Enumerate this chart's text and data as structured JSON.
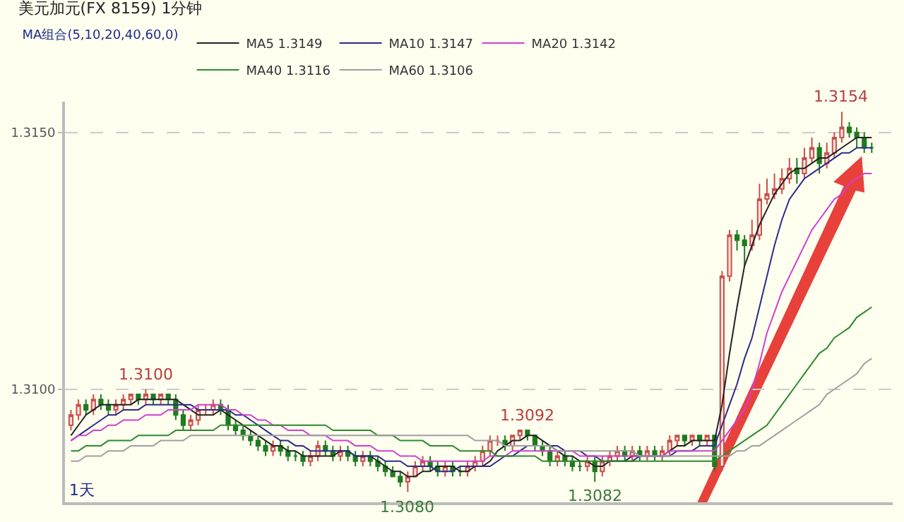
{
  "chart_data": {
    "type": "candlestick",
    "title": "美元加元(FX 8159) 1分钟",
    "legend_title": "MA组合(5,10,20,40,60,0)",
    "categories": [
      null,
      null,
      null,
      null,
      null,
      null,
      null,
      null,
      null,
      null,
      null,
      null,
      null,
      null,
      null,
      null,
      null,
      null,
      null,
      null,
      null,
      null,
      null,
      null,
      null,
      null,
      null,
      null,
      null,
      null,
      null,
      null,
      null,
      null,
      null,
      null,
      null,
      null,
      null,
      null,
      null,
      null,
      null,
      null,
      null,
      null,
      null,
      null,
      null,
      null,
      null,
      null,
      null,
      null,
      null,
      null,
      null,
      null,
      null,
      null,
      null,
      null,
      null,
      null,
      null,
      null,
      null,
      null,
      null,
      null,
      null,
      null,
      null,
      null,
      null,
      null,
      null,
      null,
      null,
      null,
      null,
      null,
      null,
      null,
      null,
      null,
      null,
      null,
      null,
      null,
      null,
      null,
      null,
      null,
      null,
      null,
      null,
      null,
      null,
      null,
      null,
      null,
      null,
      null,
      null,
      null,
      null,
      null
    ],
    "ohlc": [
      [
        1.3093,
        1.3096,
        1.3092,
        1.3095
      ],
      [
        1.3095,
        1.3098,
        1.3094,
        1.3097
      ],
      [
        1.3097,
        1.3098,
        1.3095,
        1.3096
      ],
      [
        1.3096,
        1.3099,
        1.3095,
        1.3098
      ],
      [
        1.3098,
        1.3099,
        1.3096,
        1.3097
      ],
      [
        1.3097,
        1.3098,
        1.3095,
        1.3096
      ],
      [
        1.3096,
        1.3098,
        1.3095,
        1.3097
      ],
      [
        1.3097,
        1.3099,
        1.3096,
        1.3098
      ],
      [
        1.3098,
        1.3099,
        1.3097,
        1.3099
      ],
      [
        1.3099,
        1.3099,
        1.3097,
        1.3098
      ],
      [
        1.3098,
        1.31,
        1.3097,
        1.3099
      ],
      [
        1.3099,
        1.3099,
        1.3097,
        1.3098
      ],
      [
        1.3098,
        1.3099,
        1.3097,
        1.3099
      ],
      [
        1.3099,
        1.3099,
        1.3097,
        1.3098
      ],
      [
        1.3098,
        1.3099,
        1.3094,
        1.3095
      ],
      [
        1.3095,
        1.3096,
        1.3092,
        1.3093
      ],
      [
        1.3093,
        1.3095,
        1.3092,
        1.3094
      ],
      [
        1.3094,
        1.3097,
        1.3093,
        1.3096
      ],
      [
        1.3096,
        1.3097,
        1.3095,
        1.3096
      ],
      [
        1.3096,
        1.3098,
        1.3095,
        1.3097
      ],
      [
        1.3097,
        1.3098,
        1.3095,
        1.3096
      ],
      [
        1.3096,
        1.3097,
        1.3092,
        1.3093
      ],
      [
        1.3093,
        1.3094,
        1.3091,
        1.3092
      ],
      [
        1.3092,
        1.3093,
        1.309,
        1.3091
      ],
      [
        1.3091,
        1.3092,
        1.3089,
        1.309
      ],
      [
        1.309,
        1.3091,
        1.3088,
        1.3089
      ],
      [
        1.3089,
        1.309,
        1.3087,
        1.3088
      ],
      [
        1.3088,
        1.309,
        1.3087,
        1.3089
      ],
      [
        1.3089,
        1.309,
        1.3087,
        1.3088
      ],
      [
        1.3088,
        1.3089,
        1.3086,
        1.3087
      ],
      [
        1.3087,
        1.3088,
        1.3086,
        1.3087
      ],
      [
        1.3087,
        1.3088,
        1.3085,
        1.3086
      ],
      [
        1.3086,
        1.3088,
        1.3085,
        1.3087
      ],
      [
        1.3087,
        1.309,
        1.3086,
        1.3089
      ],
      [
        1.3089,
        1.309,
        1.3087,
        1.3088
      ],
      [
        1.3088,
        1.3089,
        1.3086,
        1.3087
      ],
      [
        1.3087,
        1.3089,
        1.3086,
        1.3088
      ],
      [
        1.3088,
        1.3089,
        1.3086,
        1.3087
      ],
      [
        1.3087,
        1.3088,
        1.3085,
        1.3086
      ],
      [
        1.3086,
        1.3088,
        1.3085,
        1.3087
      ],
      [
        1.3087,
        1.3088,
        1.3085,
        1.3086
      ],
      [
        1.3086,
        1.3087,
        1.3084,
        1.3085
      ],
      [
        1.3085,
        1.3086,
        1.3083,
        1.3084
      ],
      [
        1.3084,
        1.3085,
        1.3083,
        1.3083
      ],
      [
        1.3083,
        1.3084,
        1.3081,
        1.3082
      ],
      [
        1.3082,
        1.3084,
        1.308,
        1.3083
      ],
      [
        1.3083,
        1.3086,
        1.3083,
        1.3085
      ],
      [
        1.3085,
        1.3087,
        1.3084,
        1.3086
      ],
      [
        1.3086,
        1.3087,
        1.3084,
        1.3085
      ],
      [
        1.3085,
        1.3086,
        1.3083,
        1.3084
      ],
      [
        1.3084,
        1.3086,
        1.3083,
        1.3085
      ],
      [
        1.3085,
        1.3086,
        1.3083,
        1.3084
      ],
      [
        1.3084,
        1.3085,
        1.3083,
        1.3084
      ],
      [
        1.3084,
        1.3086,
        1.3083,
        1.3085
      ],
      [
        1.3085,
        1.3087,
        1.3084,
        1.3086
      ],
      [
        1.3086,
        1.3089,
        1.3085,
        1.3088
      ],
      [
        1.3088,
        1.3091,
        1.3087,
        1.309
      ],
      [
        1.309,
        1.3091,
        1.3089,
        1.309
      ],
      [
        1.309,
        1.3091,
        1.3088,
        1.3089
      ],
      [
        1.3089,
        1.3091,
        1.3088,
        1.3091
      ],
      [
        1.3091,
        1.3092,
        1.309,
        1.3092
      ],
      [
        1.3092,
        1.3092,
        1.309,
        1.3091
      ],
      [
        1.3091,
        1.3091,
        1.3088,
        1.3089
      ],
      [
        1.3089,
        1.309,
        1.3087,
        1.3088
      ],
      [
        1.3088,
        1.3089,
        1.3085,
        1.3086
      ],
      [
        1.3086,
        1.3088,
        1.3085,
        1.3087
      ],
      [
        1.3087,
        1.3088,
        1.3085,
        1.3086
      ],
      [
        1.3086,
        1.3087,
        1.3084,
        1.3085
      ],
      [
        1.3085,
        1.3086,
        1.3084,
        1.3085
      ],
      [
        1.3085,
        1.3087,
        1.3084,
        1.3086
      ],
      [
        1.3086,
        1.3087,
        1.3082,
        1.3084
      ],
      [
        1.3084,
        1.3087,
        1.3083,
        1.3086
      ],
      [
        1.3086,
        1.3088,
        1.3085,
        1.3087
      ],
      [
        1.3087,
        1.3089,
        1.3086,
        1.3088
      ],
      [
        1.3088,
        1.3089,
        1.3086,
        1.3087
      ],
      [
        1.3087,
        1.3089,
        1.3086,
        1.3088
      ],
      [
        1.3088,
        1.3089,
        1.3086,
        1.3087
      ],
      [
        1.3087,
        1.3089,
        1.3086,
        1.3088
      ],
      [
        1.3088,
        1.3089,
        1.3086,
        1.3087
      ],
      [
        1.3087,
        1.3089,
        1.3086,
        1.3088
      ],
      [
        1.3088,
        1.3091,
        1.3087,
        1.309
      ],
      [
        1.309,
        1.3091,
        1.3089,
        1.3091
      ],
      [
        1.3091,
        1.3091,
        1.3089,
        1.309
      ],
      [
        1.309,
        1.3091,
        1.3089,
        1.3091
      ],
      [
        1.3091,
        1.3091,
        1.3089,
        1.309
      ],
      [
        1.309,
        1.3091,
        1.3089,
        1.3091
      ],
      [
        1.3091,
        1.3091,
        1.3084,
        1.3085
      ],
      [
        1.3085,
        1.3123,
        1.3084,
        1.3122
      ],
      [
        1.3122,
        1.3131,
        1.3121,
        1.313
      ],
      [
        1.313,
        1.3131,
        1.3127,
        1.3129
      ],
      [
        1.3129,
        1.313,
        1.3124,
        1.3128
      ],
      [
        1.3128,
        1.3133,
        1.3127,
        1.313
      ],
      [
        1.313,
        1.314,
        1.3129,
        1.3137
      ],
      [
        1.3137,
        1.3141,
        1.3136,
        1.3138
      ],
      [
        1.3138,
        1.3142,
        1.3137,
        1.3139
      ],
      [
        1.3139,
        1.3143,
        1.3138,
        1.3141
      ],
      [
        1.3141,
        1.3145,
        1.314,
        1.3143
      ],
      [
        1.3143,
        1.3145,
        1.314,
        1.3142
      ],
      [
        1.3142,
        1.3147,
        1.3141,
        1.3145
      ],
      [
        1.3145,
        1.3149,
        1.3144,
        1.3147
      ],
      [
        1.3147,
        1.3148,
        1.3142,
        1.3144
      ],
      [
        1.3144,
        1.3148,
        1.3143,
        1.3146
      ],
      [
        1.3146,
        1.315,
        1.3145,
        1.3149
      ],
      [
        1.3149,
        1.3154,
        1.3148,
        1.3151
      ],
      [
        1.3151,
        1.3152,
        1.3149,
        1.315
      ],
      [
        1.315,
        1.3151,
        1.3147,
        1.3149
      ],
      [
        1.3149,
        1.315,
        1.3146,
        1.3147
      ],
      [
        1.3147,
        1.3148,
        1.3146,
        1.3147
      ]
    ],
    "series": [
      {
        "type": "line",
        "name": "MA5 1.3149",
        "color": "#222222",
        "values": [
          1.3091,
          1.3093,
          1.3095,
          1.3096,
          1.3097,
          1.3097,
          1.3097,
          1.3097,
          1.3097,
          1.3098,
          1.3098,
          1.3098,
          1.3098,
          1.3098,
          1.3098,
          1.3097,
          1.3096,
          1.3095,
          1.3095,
          1.3095,
          1.3096,
          1.3095,
          1.3094,
          1.3093,
          1.3092,
          1.3091,
          1.309,
          1.3089,
          1.3089,
          1.3088,
          1.3088,
          1.3087,
          1.3087,
          1.3087,
          1.3087,
          1.3087,
          1.3088,
          1.3088,
          1.3087,
          1.3087,
          1.3087,
          1.3086,
          1.3085,
          1.3084,
          1.3084,
          1.3083,
          1.3083,
          1.3084,
          1.3084,
          1.3085,
          1.3085,
          1.3085,
          1.3084,
          1.3084,
          1.3085,
          1.3085,
          1.3086,
          1.3088,
          1.3089,
          1.309,
          1.309,
          1.3091,
          1.3091,
          1.309,
          1.3089,
          1.3088,
          1.3087,
          1.3087,
          1.3086,
          1.3086,
          1.3085,
          1.3085,
          1.3086,
          1.3086,
          1.3086,
          1.3087,
          1.3087,
          1.3087,
          1.3087,
          1.3087,
          1.3088,
          1.3089,
          1.3089,
          1.309,
          1.309,
          1.309,
          1.309,
          1.3097,
          1.3107,
          1.3116,
          1.3124,
          1.3128,
          1.3132,
          1.3135,
          1.3138,
          1.314,
          1.3142,
          1.3143,
          1.3143,
          1.3144,
          1.3145,
          1.3145,
          1.3146,
          1.3147,
          1.3148,
          1.3149,
          1.3149,
          1.3149
        ]
      },
      {
        "type": "line",
        "name": "MA10 1.3147",
        "color": "#2b2b8c",
        "values": [
          1.309,
          1.3091,
          1.3092,
          1.3093,
          1.3094,
          1.3095,
          1.3095,
          1.3096,
          1.3096,
          1.3096,
          1.3097,
          1.3097,
          1.3097,
          1.3097,
          1.3097,
          1.3097,
          1.3097,
          1.3096,
          1.3096,
          1.3096,
          1.3096,
          1.3096,
          1.3095,
          1.3095,
          1.3094,
          1.3093,
          1.3092,
          1.3091,
          1.309,
          1.309,
          1.3089,
          1.3089,
          1.3088,
          1.3088,
          1.3088,
          1.3088,
          1.3088,
          1.3088,
          1.3087,
          1.3087,
          1.3087,
          1.3087,
          1.3086,
          1.3086,
          1.3086,
          1.3085,
          1.3085,
          1.3085,
          1.3085,
          1.3084,
          1.3084,
          1.3084,
          1.3085,
          1.3085,
          1.3085,
          1.3085,
          1.3085,
          1.3086,
          1.3087,
          1.3087,
          1.3088,
          1.3089,
          1.3089,
          1.3089,
          1.3089,
          1.3089,
          1.3088,
          1.3088,
          1.3088,
          1.3087,
          1.3087,
          1.3086,
          1.3086,
          1.3086,
          1.3086,
          1.3086,
          1.3087,
          1.3087,
          1.3087,
          1.3087,
          1.3087,
          1.3088,
          1.3088,
          1.3088,
          1.3089,
          1.3089,
          1.3089,
          1.3093,
          1.3097,
          1.3101,
          1.3106,
          1.311,
          1.3116,
          1.3122,
          1.3128,
          1.3133,
          1.3137,
          1.3139,
          1.3141,
          1.3142,
          1.3143,
          1.3144,
          1.3145,
          1.3146,
          1.3146,
          1.3147,
          1.3147,
          1.3147
        ]
      },
      {
        "type": "line",
        "name": "MA20 1.3142",
        "color": "#d040d0",
        "values": [
          1.309,
          1.3091,
          1.3091,
          1.3092,
          1.3092,
          1.3093,
          1.3093,
          1.3094,
          1.3094,
          1.3094,
          1.3095,
          1.3095,
          1.3095,
          1.3096,
          1.3096,
          1.3096,
          1.3096,
          1.3097,
          1.3097,
          1.3097,
          1.3097,
          1.3096,
          1.3096,
          1.3095,
          1.3095,
          1.3094,
          1.3094,
          1.3093,
          1.3093,
          1.3092,
          1.3092,
          1.3092,
          1.3091,
          1.3091,
          1.3091,
          1.309,
          1.309,
          1.309,
          1.3089,
          1.3089,
          1.3089,
          1.3088,
          1.3088,
          1.3088,
          1.3087,
          1.3087,
          1.3087,
          1.3086,
          1.3086,
          1.3086,
          1.3086,
          1.3086,
          1.3086,
          1.3086,
          1.3086,
          1.3086,
          1.3087,
          1.3087,
          1.3087,
          1.3088,
          1.3088,
          1.3088,
          1.3088,
          1.3088,
          1.3088,
          1.3088,
          1.3088,
          1.3088,
          1.3087,
          1.3087,
          1.3087,
          1.3087,
          1.3087,
          1.3087,
          1.3087,
          1.3087,
          1.3087,
          1.3087,
          1.3087,
          1.3087,
          1.3088,
          1.3088,
          1.3088,
          1.3088,
          1.3088,
          1.3088,
          1.3088,
          1.309,
          1.3092,
          1.3094,
          1.3096,
          1.31,
          1.3105,
          1.3111,
          1.3115,
          1.3119,
          1.3122,
          1.3125,
          1.3128,
          1.3131,
          1.3133,
          1.3135,
          1.3137,
          1.3138,
          1.314,
          1.3141,
          1.3142,
          1.3142
        ]
      },
      {
        "type": "line",
        "name": "MA40 1.3116",
        "color": "#2e8b2e",
        "values": [
          1.3088,
          1.3088,
          1.3089,
          1.3089,
          1.3089,
          1.309,
          1.309,
          1.309,
          1.309,
          1.3091,
          1.3091,
          1.3091,
          1.3091,
          1.3091,
          1.3092,
          1.3092,
          1.3092,
          1.3092,
          1.3092,
          1.3092,
          1.3093,
          1.3093,
          1.3093,
          1.3093,
          1.3093,
          1.3093,
          1.3093,
          1.3093,
          1.3093,
          1.3093,
          1.3093,
          1.3093,
          1.3093,
          1.3093,
          1.3093,
          1.3092,
          1.3092,
          1.3092,
          1.3092,
          1.3092,
          1.3092,
          1.3091,
          1.3091,
          1.3091,
          1.309,
          1.309,
          1.309,
          1.309,
          1.3089,
          1.3089,
          1.3089,
          1.3089,
          1.3088,
          1.3088,
          1.3088,
          1.3088,
          1.3088,
          1.3087,
          1.3087,
          1.3087,
          1.3087,
          1.3087,
          1.3087,
          1.3086,
          1.3086,
          1.3086,
          1.3086,
          1.3086,
          1.3086,
          1.3086,
          1.3086,
          1.3086,
          1.3086,
          1.3086,
          1.3086,
          1.3086,
          1.3086,
          1.3086,
          1.3086,
          1.3086,
          1.3086,
          1.3086,
          1.3086,
          1.3086,
          1.3086,
          1.3086,
          1.3086,
          1.3087,
          1.3088,
          1.3089,
          1.309,
          1.3091,
          1.3092,
          1.3093,
          1.3095,
          1.3097,
          1.3099,
          1.3101,
          1.3103,
          1.3105,
          1.3107,
          1.3108,
          1.311,
          1.3111,
          1.3112,
          1.3114,
          1.3115,
          1.3116
        ]
      },
      {
        "type": "line",
        "name": "MA60 1.3106",
        "color": "#a0a0a0",
        "values": [
          1.3086,
          1.3086,
          1.3087,
          1.3087,
          1.3087,
          1.3088,
          1.3088,
          1.3088,
          1.3089,
          1.3089,
          1.3089,
          1.3089,
          1.309,
          1.309,
          1.309,
          1.309,
          1.3091,
          1.3091,
          1.3091,
          1.3091,
          1.3091,
          1.3091,
          1.3091,
          1.3091,
          1.3091,
          1.3091,
          1.3091,
          1.3091,
          1.3091,
          1.3091,
          1.3091,
          1.3091,
          1.3091,
          1.3091,
          1.3091,
          1.3091,
          1.3091,
          1.3091,
          1.3091,
          1.3091,
          1.3091,
          1.3091,
          1.3091,
          1.3091,
          1.3091,
          1.3091,
          1.3091,
          1.3091,
          1.3091,
          1.3091,
          1.3091,
          1.3091,
          1.3091,
          1.3091,
          1.309,
          1.309,
          1.309,
          1.309,
          1.3089,
          1.3089,
          1.3089,
          1.3089,
          1.3089,
          1.3089,
          1.3089,
          1.3088,
          1.3088,
          1.3088,
          1.3088,
          1.3088,
          1.3088,
          1.3088,
          1.3088,
          1.3088,
          1.3088,
          1.3088,
          1.3087,
          1.3087,
          1.3087,
          1.3087,
          1.3087,
          1.3087,
          1.3087,
          1.3087,
          1.3087,
          1.3087,
          1.3087,
          1.3087,
          1.3087,
          1.3088,
          1.3088,
          1.3089,
          1.3089,
          1.309,
          1.3091,
          1.3092,
          1.3093,
          1.3094,
          1.3095,
          1.3096,
          1.3097,
          1.3099,
          1.31,
          1.3101,
          1.3102,
          1.3103,
          1.3105,
          1.3106
        ]
      }
    ],
    "ylim": [
      1.3078,
      1.3156
    ],
    "yticks": [
      {
        "value": 1.31,
        "label": "1.3100"
      },
      {
        "value": 1.315,
        "label": "1.3150"
      }
    ],
    "grid": "y",
    "legend": "top left",
    "tick_labels": "y",
    "annotations": [
      {
        "text": "1.3100",
        "y": 1.31
      },
      {
        "text": "1.3092",
        "y": 1.3092
      },
      {
        "text": "1.3080",
        "y": 1.308
      },
      {
        "text": "1.3082",
        "y": 1.3082
      },
      {
        "text": "1.3154",
        "y": 1.3154
      },
      "1天"
    ]
  }
}
